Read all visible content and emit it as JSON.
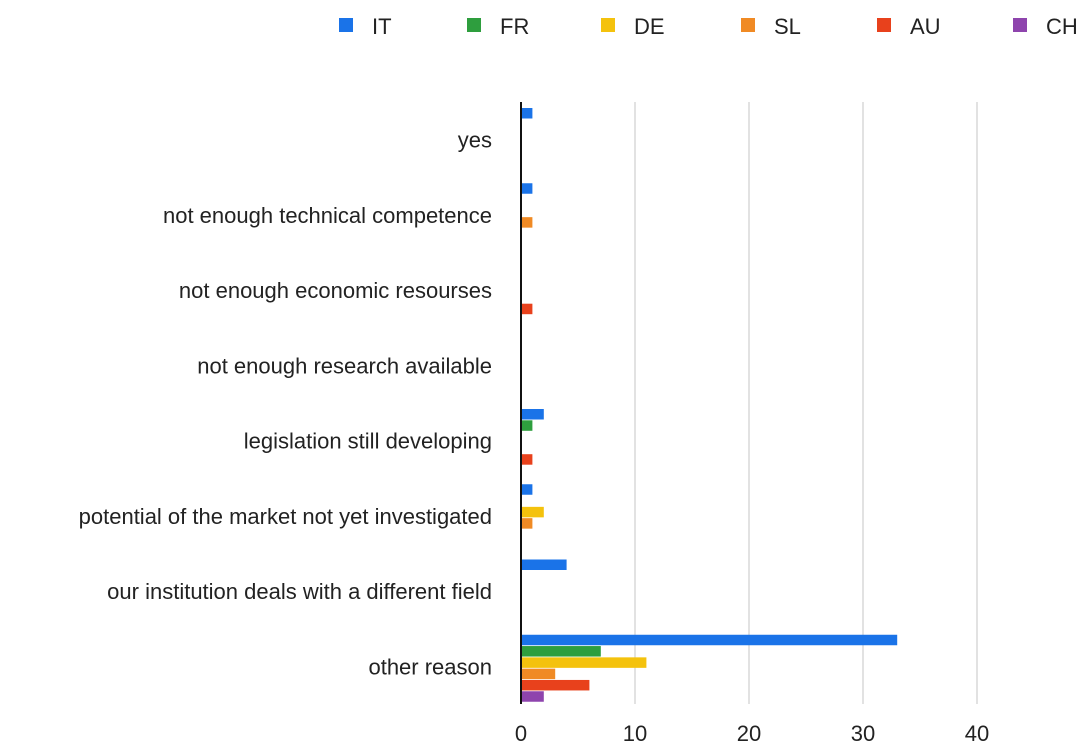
{
  "chart_data": {
    "type": "bar",
    "orientation": "horizontal",
    "title": "",
    "xlabel": "",
    "ylabel": "",
    "categories": [
      "yes",
      "not enough technical competence",
      "not enough economic resourses",
      "not enough research available",
      "legislation still developing",
      "potential of the market not yet  investigated",
      "our institution deals with a different field",
      "other reason"
    ],
    "series": [
      {
        "name": "IT",
        "color": "#1a73e8",
        "values": [
          1,
          1,
          0,
          0,
          2,
          1,
          4,
          33
        ]
      },
      {
        "name": "FR",
        "color": "#2e9e3e",
        "values": [
          0,
          0,
          0,
          0,
          1,
          0,
          0,
          7
        ]
      },
      {
        "name": "DE",
        "color": "#f4c20d",
        "values": [
          0,
          0,
          0,
          0,
          0,
          2,
          0,
          11
        ]
      },
      {
        "name": "SL",
        "color": "#f08a24",
        "values": [
          0,
          1,
          0,
          0,
          0,
          1,
          0,
          3
        ]
      },
      {
        "name": "AU",
        "color": "#e8411c",
        "values": [
          0,
          0,
          1,
          0,
          1,
          0,
          0,
          6
        ]
      },
      {
        "name": "CH",
        "color": "#8e44ad",
        "values": [
          0,
          0,
          0,
          0,
          0,
          0,
          0,
          2
        ]
      }
    ],
    "xlim": [
      0,
      40
    ],
    "xticks": [
      0,
      10,
      20,
      30,
      40
    ],
    "grid": "vertical",
    "legend_position": "top"
  }
}
